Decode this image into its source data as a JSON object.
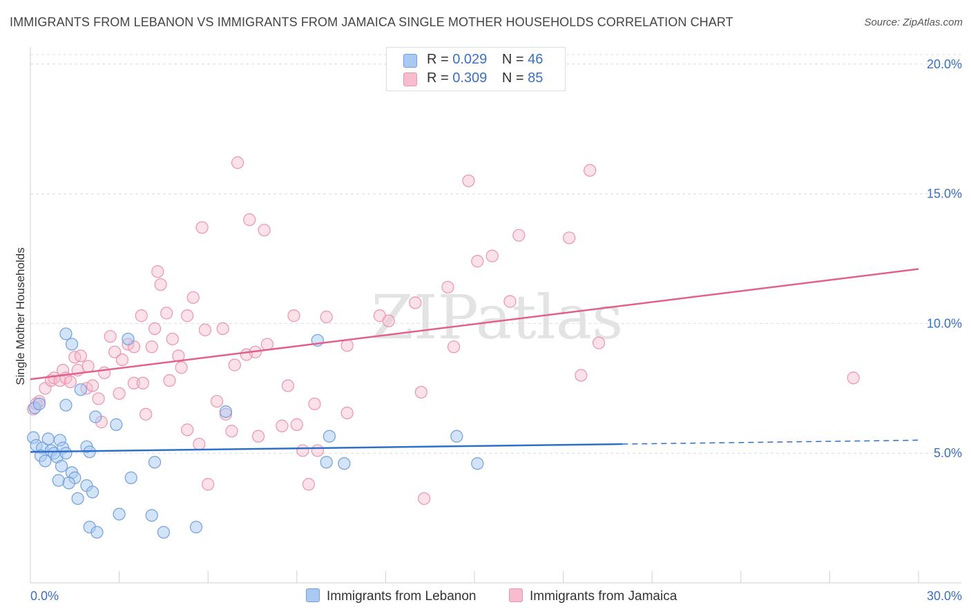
{
  "title": "IMMIGRANTS FROM LEBANON VS IMMIGRANTS FROM JAMAICA SINGLE MOTHER HOUSEHOLDS CORRELATION CHART",
  "source": "Source: ZipAtlas.com",
  "watermark": "ZIPatlas",
  "legend": {
    "rows": [
      {
        "r_label": "R =",
        "r_value": "0.029",
        "n_label": "N =",
        "n_value": "46"
      },
      {
        "r_label": "R =",
        "r_value": "0.309",
        "n_label": "N =",
        "n_value": "85"
      }
    ]
  },
  "bottom_legend": {
    "lebanon": "Immigrants from Lebanon",
    "jamaica": "Immigrants from Jamaica"
  },
  "chart_data": {
    "type": "scatter",
    "title": "IMMIGRANTS FROM LEBANON VS IMMIGRANTS FROM JAMAICA SINGLE MOTHER HOUSEHOLDS CORRELATION CHART",
    "xlabel": "",
    "ylabel": "Single Mother Households",
    "xlim": [
      0,
      30
    ],
    "ylim": [
      0,
      20.5
    ],
    "x_tick_labels": [
      "0.0%",
      "30.0%"
    ],
    "y_tick_labels": [
      "5.0%",
      "10.0%",
      "15.0%",
      "20.0%"
    ],
    "y_ticks": [
      5,
      10,
      15,
      20
    ],
    "grid": true,
    "colors": {
      "lebanon_fill": "#a9c9f2",
      "lebanon_stroke": "#6f9fde",
      "lebanon_line": "#2f6fcc",
      "jamaica_fill": "#f7bccd",
      "jamaica_stroke": "#ec93ae",
      "jamaica_line": "#e0608e"
    },
    "series": [
      {
        "name": "Immigrants from Lebanon",
        "R": 0.029,
        "N": 46,
        "trend": {
          "x0": 0,
          "y0": 5.05,
          "x1": 20,
          "y1": 5.35,
          "dash_to_x": 30,
          "dash_to_y": 5.5
        },
        "points": [
          [
            0.1,
            5.6
          ],
          [
            0.2,
            5.3
          ],
          [
            0.4,
            5.2
          ],
          [
            0.35,
            4.9
          ],
          [
            0.5,
            4.7
          ],
          [
            0.7,
            5.1
          ],
          [
            0.6,
            5.55
          ],
          [
            0.8,
            5.0
          ],
          [
            0.9,
            4.85
          ],
          [
            1.0,
            5.5
          ],
          [
            1.1,
            5.2
          ],
          [
            1.2,
            5.0
          ],
          [
            1.05,
            4.5
          ],
          [
            0.95,
            3.95
          ],
          [
            1.4,
            4.25
          ],
          [
            1.5,
            4.05
          ],
          [
            1.3,
            3.85
          ],
          [
            1.9,
            3.75
          ],
          [
            1.6,
            3.25
          ],
          [
            2.1,
            3.5
          ],
          [
            1.2,
            9.6
          ],
          [
            1.4,
            9.2
          ],
          [
            1.2,
            6.85
          ],
          [
            1.7,
            7.45
          ],
          [
            2.2,
            6.4
          ],
          [
            1.9,
            5.25
          ],
          [
            2.0,
            5.05
          ],
          [
            2.9,
            6.1
          ],
          [
            3.3,
            9.4
          ],
          [
            3.4,
            4.05
          ],
          [
            4.2,
            4.65
          ],
          [
            4.1,
            2.6
          ],
          [
            4.5,
            1.95
          ],
          [
            5.6,
            2.15
          ],
          [
            3.0,
            2.65
          ],
          [
            2.0,
            2.15
          ],
          [
            2.25,
            1.95
          ],
          [
            6.6,
            6.6
          ],
          [
            9.7,
            9.35
          ],
          [
            10.0,
            4.65
          ],
          [
            10.1,
            5.65
          ],
          [
            10.6,
            4.6
          ],
          [
            14.4,
            5.65
          ],
          [
            15.1,
            4.6
          ],
          [
            0.15,
            6.75
          ],
          [
            0.3,
            6.9
          ]
        ]
      },
      {
        "name": "Immigrants from Jamaica",
        "R": 0.309,
        "N": 85,
        "trend": {
          "x0": 0,
          "y0": 7.85,
          "x1": 30,
          "y1": 12.1
        },
        "points": [
          [
            0.1,
            6.7
          ],
          [
            0.3,
            7.0
          ],
          [
            0.5,
            7.5
          ],
          [
            0.7,
            7.8
          ],
          [
            0.8,
            7.9
          ],
          [
            1.0,
            7.8
          ],
          [
            1.1,
            8.2
          ],
          [
            1.2,
            7.9
          ],
          [
            1.35,
            7.75
          ],
          [
            1.5,
            8.7
          ],
          [
            1.7,
            8.75
          ],
          [
            1.6,
            8.2
          ],
          [
            1.95,
            8.35
          ],
          [
            1.9,
            7.5
          ],
          [
            2.1,
            7.6
          ],
          [
            2.3,
            7.1
          ],
          [
            2.5,
            8.1
          ],
          [
            2.4,
            6.2
          ],
          [
            2.7,
            9.5
          ],
          [
            2.85,
            8.9
          ],
          [
            3.0,
            7.3
          ],
          [
            3.1,
            8.6
          ],
          [
            3.3,
            9.2
          ],
          [
            3.5,
            9.1
          ],
          [
            3.5,
            7.7
          ],
          [
            3.8,
            7.7
          ],
          [
            3.75,
            10.3
          ],
          [
            3.9,
            6.5
          ],
          [
            4.1,
            9.1
          ],
          [
            4.2,
            9.8
          ],
          [
            4.3,
            12.0
          ],
          [
            4.4,
            11.5
          ],
          [
            4.6,
            10.4
          ],
          [
            4.7,
            7.8
          ],
          [
            4.8,
            9.4
          ],
          [
            5.0,
            8.75
          ],
          [
            5.1,
            8.3
          ],
          [
            5.3,
            10.3
          ],
          [
            5.3,
            5.9
          ],
          [
            5.5,
            11.0
          ],
          [
            5.7,
            5.35
          ],
          [
            5.8,
            13.7
          ],
          [
            5.9,
            9.75
          ],
          [
            6.0,
            3.8
          ],
          [
            6.3,
            7.0
          ],
          [
            6.5,
            9.8
          ],
          [
            6.6,
            6.5
          ],
          [
            6.8,
            5.85
          ],
          [
            6.9,
            8.4
          ],
          [
            7.0,
            16.2
          ],
          [
            7.3,
            8.8
          ],
          [
            7.4,
            14.0
          ],
          [
            7.6,
            8.9
          ],
          [
            7.7,
            5.65
          ],
          [
            7.9,
            13.6
          ],
          [
            8.0,
            9.2
          ],
          [
            8.5,
            6.05
          ],
          [
            8.7,
            7.6
          ],
          [
            8.9,
            10.3
          ],
          [
            9.0,
            6.1
          ],
          [
            9.2,
            5.1
          ],
          [
            9.4,
            3.8
          ],
          [
            9.6,
            6.9
          ],
          [
            9.7,
            5.1
          ],
          [
            10.0,
            10.25
          ],
          [
            10.7,
            6.55
          ],
          [
            10.7,
            9.15
          ],
          [
            11.8,
            10.3
          ],
          [
            12.1,
            10.1
          ],
          [
            13.0,
            10.8
          ],
          [
            13.2,
            7.35
          ],
          [
            13.3,
            3.25
          ],
          [
            14.1,
            11.4
          ],
          [
            14.3,
            9.1
          ],
          [
            14.8,
            15.5
          ],
          [
            15.1,
            12.4
          ],
          [
            15.6,
            12.6
          ],
          [
            16.2,
            10.85
          ],
          [
            16.5,
            13.4
          ],
          [
            18.2,
            13.3
          ],
          [
            18.6,
            8.0
          ],
          [
            18.9,
            15.9
          ],
          [
            19.2,
            9.25
          ],
          [
            27.8,
            7.9
          ],
          [
            0.2,
            6.9
          ]
        ]
      }
    ]
  }
}
